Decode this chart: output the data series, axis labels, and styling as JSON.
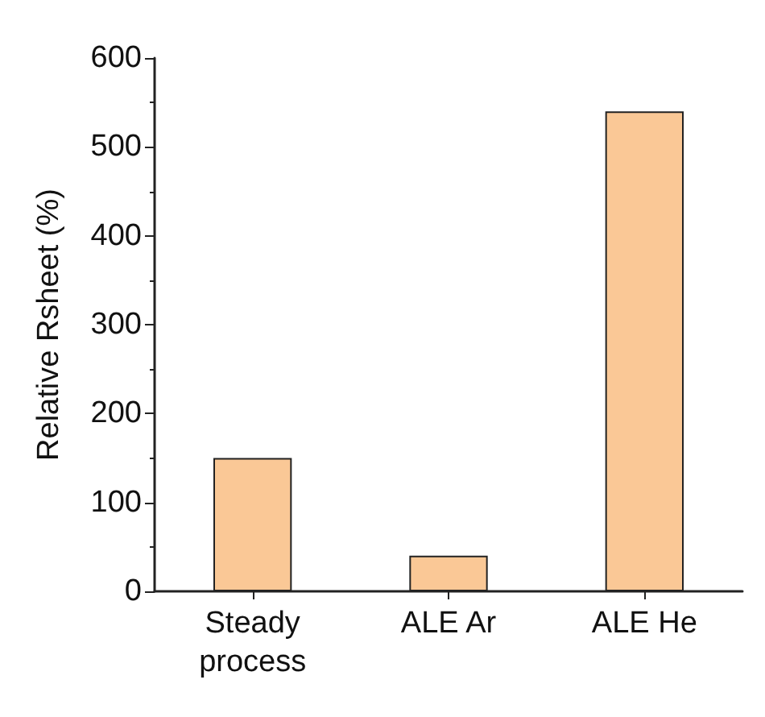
{
  "chart_data": {
    "type": "bar",
    "ylabel": "Relative Rsheet (%)",
    "categories": [
      "Steady\nprocess",
      "ALE Ar",
      "ALE He"
    ],
    "values": [
      150,
      40,
      540
    ],
    "color": "#fac896",
    "ylim": [
      0,
      600
    ],
    "yticks": [
      0,
      100,
      200,
      300,
      400,
      500,
      600
    ],
    "grid": false
  }
}
